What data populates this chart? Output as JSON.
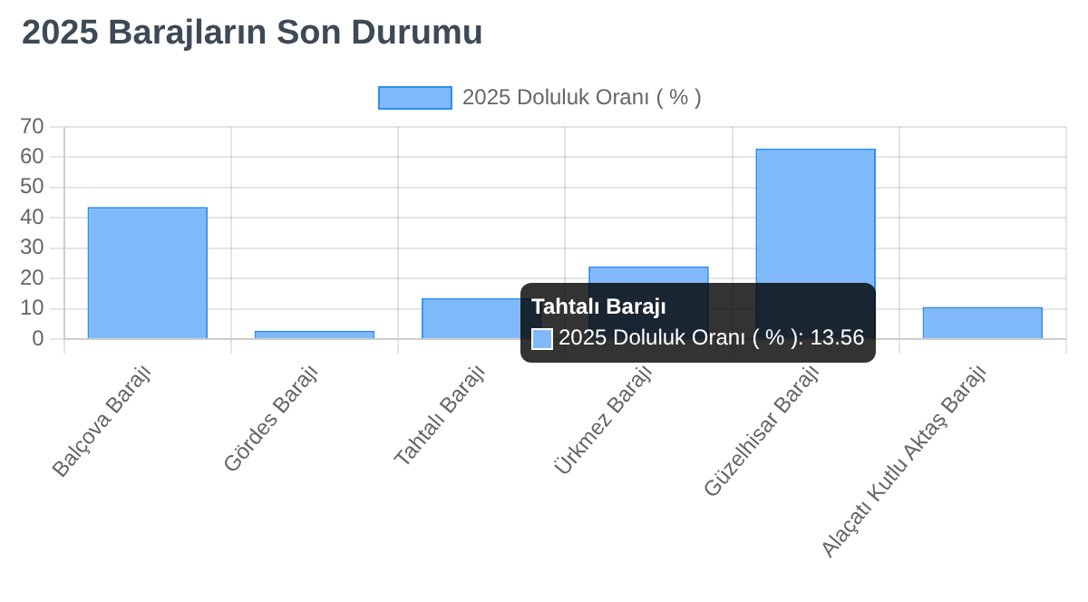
{
  "chart_data": {
    "type": "bar",
    "title": "2025 Barajların Son Durumu",
    "categories": [
      "Balçova Barajı",
      "Gördes Barajı",
      "Tahtalı Barajı",
      "Ürkmez Barajı",
      "Güzelhisar Barajı",
      "Alaçatı Kutlu Aktaş Barajı"
    ],
    "series": [
      {
        "name": "2025 Doluluk Oranı ( % )",
        "color": "#80b9f9",
        "values": [
          43.6,
          2.8,
          13.56,
          24,
          62.9,
          10.6
        ]
      }
    ],
    "ylim": [
      0,
      70
    ],
    "yticks": [
      0,
      10,
      20,
      30,
      40,
      50,
      60,
      70
    ],
    "grid": true,
    "legend": "top",
    "annotations": [
      "Tahtalı Barajı",
      "2025 Doluluk Oranı ( % ): 13.56"
    ]
  }
}
